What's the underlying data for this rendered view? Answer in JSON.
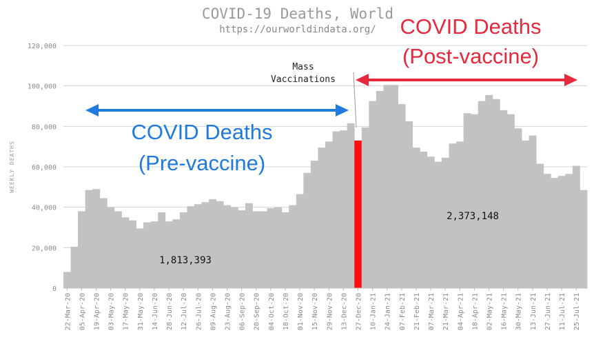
{
  "chart_data": {
    "type": "bar",
    "title": "COVID-19 Deaths, World",
    "subtitle": "https://ourworldindata.org/",
    "ylabel": "WEEKLY DEATHS",
    "ylim": [
      0,
      120000
    ],
    "yticks": [
      0,
      20000,
      40000,
      60000,
      80000,
      100000,
      120000
    ],
    "ytick_labels": [
      "0",
      "20,000",
      "40,000",
      "60,000",
      "80,000",
      "100,000",
      "120,000"
    ],
    "x_tick_labels": [
      "22-Mar-20",
      "05-Apr-20",
      "19-Apr-20",
      "03-May-20",
      "17-May-20",
      "31-May-20",
      "14-Jun-20",
      "28-Jun-20",
      "12-Jul-20",
      "26-Jul-20",
      "09-Aug-20",
      "23-Aug-20",
      "06-Sep-20",
      "20-Sep-20",
      "04-Oct-20",
      "18-Oct-20",
      "01-Nov-20",
      "15-Nov-20",
      "29-Nov-20",
      "13-Dec-20",
      "27-Dec-20",
      "10-Jan-21",
      "24-Jan-21",
      "07-Feb-21",
      "21-Feb-21",
      "07-Mar-21",
      "21-Mar-21",
      "04-Apr-21",
      "18-Apr-21",
      "02-May-21",
      "16-May-21",
      "30-May-21",
      "13-Jun-21",
      "27-Jun-21",
      "11-Jul-21",
      "25-Jul-21"
    ],
    "values": [
      8000,
      20500,
      38000,
      48500,
      49000,
      44500,
      40000,
      38000,
      35000,
      33500,
      29500,
      32500,
      33000,
      37500,
      33000,
      34000,
      37500,
      40500,
      41500,
      42500,
      44000,
      43000,
      41000,
      40000,
      38500,
      42000,
      38000,
      38000,
      39500,
      40000,
      37500,
      41000,
      46500,
      57000,
      63000,
      69500,
      72500,
      77500,
      78000,
      81500,
      73000,
      79500,
      92500,
      97500,
      100500,
      100500,
      91000,
      82500,
      69500,
      67500,
      65000,
      62500,
      64500,
      71500,
      72500,
      86500,
      86000,
      92500,
      95500,
      93500,
      88000,
      86000,
      79000,
      73000,
      75500,
      61500,
      56500,
      54500,
      55500,
      56500,
      60500,
      48500
    ],
    "highlight_index": 40,
    "series_colors": {
      "bars": "#c2c2c2",
      "highlight": "#ff1010"
    },
    "annotations": {
      "vaccination_label_line1": "Mass",
      "vaccination_label_line2": "Vaccinations",
      "pre_total": "1,813,393",
      "post_total": "2,373,148",
      "pre_label_line1": "COVID Deaths",
      "pre_label_line2": "(Pre-vaccine)",
      "post_label_line1": "COVID Deaths",
      "post_label_line2": "(Post-vaccine)"
    },
    "colors": {
      "pre_arrow": "#1f7ae0",
      "post_arrow": "#e8283c"
    }
  }
}
